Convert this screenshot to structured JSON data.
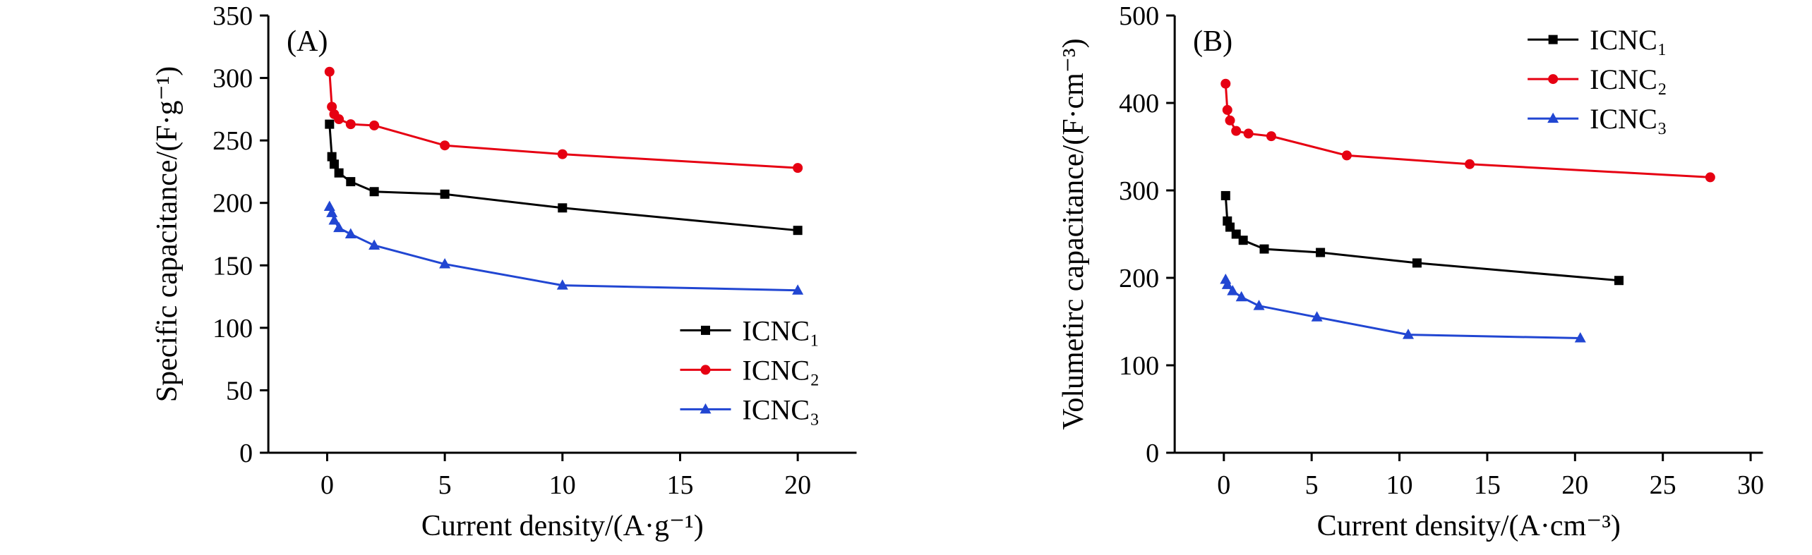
{
  "page": {
    "background": "#ffffff",
    "text_color": "#000000"
  },
  "chart_data": [
    {
      "type": "line",
      "panel_label": "(A)",
      "xlabel": "Current density/(A·g⁻¹)",
      "ylabel": "Specific capacitance/(F·g⁻¹)",
      "xlim": [
        -2.5,
        22.5
      ],
      "ylim": [
        0,
        350
      ],
      "xticks": [
        0,
        5,
        10,
        15,
        20
      ],
      "yticks": [
        0,
        50,
        100,
        150,
        200,
        250,
        300,
        350
      ],
      "grid": false,
      "legend_position": "bottom-right",
      "series": [
        {
          "name": "ICNC₁",
          "color": "#000000",
          "marker": "square",
          "x": [
            0.1,
            0.2,
            0.3,
            0.5,
            1,
            2,
            5,
            10,
            20
          ],
          "y": [
            263,
            237,
            231,
            224,
            217,
            209,
            207,
            196,
            178
          ]
        },
        {
          "name": "ICNC₂",
          "color": "#e60012",
          "marker": "circle",
          "x": [
            0.1,
            0.2,
            0.3,
            0.5,
            1,
            2,
            5,
            10,
            20
          ],
          "y": [
            305,
            277,
            271,
            267,
            263,
            262,
            246,
            239,
            228
          ]
        },
        {
          "name": "ICNC₃",
          "color": "#2146d2",
          "marker": "triangle",
          "x": [
            0.1,
            0.2,
            0.3,
            0.5,
            1,
            2,
            5,
            10,
            20
          ],
          "y": [
            197,
            192,
            186,
            180,
            175,
            166,
            151,
            134,
            130
          ]
        }
      ]
    },
    {
      "type": "line",
      "panel_label": "(B)",
      "xlabel": "Current density/(A·cm⁻³)",
      "ylabel": "Volumetirc capacitance/(F·cm⁻³)",
      "xlim": [
        -2.8,
        30.7
      ],
      "ylim": [
        0,
        500
      ],
      "xticks": [
        0,
        5,
        10,
        15,
        20,
        25,
        30
      ],
      "yticks": [
        0,
        100,
        200,
        300,
        400,
        500
      ],
      "grid": false,
      "legend_position": "top-right",
      "series": [
        {
          "name": "ICNC₁",
          "color": "#000000",
          "marker": "square",
          "x": [
            0.1,
            0.2,
            0.35,
            0.7,
            1.1,
            2.3,
            5.5,
            11,
            22.5
          ],
          "y": [
            294,
            265,
            258,
            250,
            243,
            233,
            229,
            217,
            197
          ]
        },
        {
          "name": "ICNC₂",
          "color": "#e60012",
          "marker": "circle",
          "x": [
            0.1,
            0.2,
            0.35,
            0.7,
            1.4,
            2.7,
            7,
            14,
            27.7
          ],
          "y": [
            422,
            392,
            380,
            368,
            365,
            362,
            340,
            330,
            315
          ]
        },
        {
          "name": "ICNC₃",
          "color": "#2146d2",
          "marker": "triangle",
          "x": [
            0.1,
            0.2,
            0.5,
            1,
            2,
            5.3,
            10.5,
            20.3
          ],
          "y": [
            198,
            192,
            185,
            178,
            168,
            155,
            135,
            131
          ]
        }
      ]
    }
  ]
}
